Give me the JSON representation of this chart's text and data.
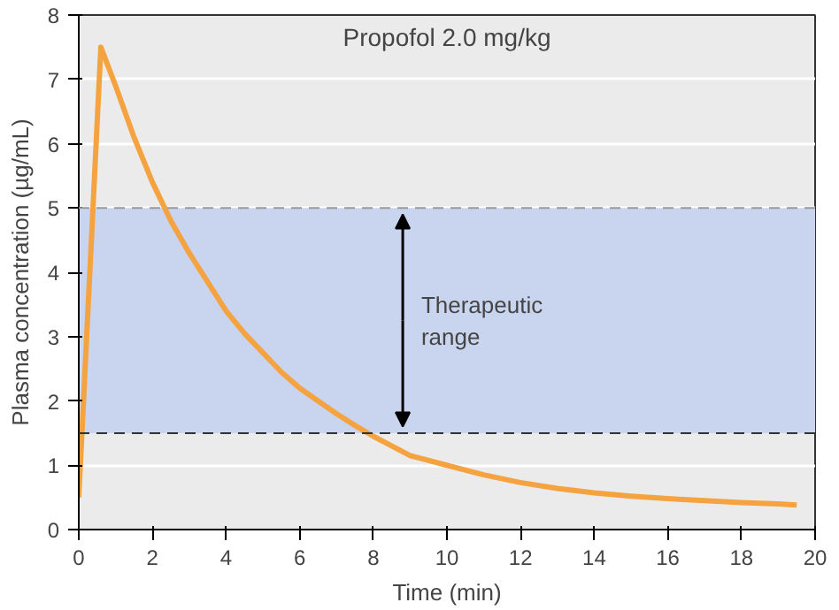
{
  "chart_data": {
    "type": "line",
    "title": "Propofol 2.0 mg/kg",
    "xlabel": "Time (min)",
    "ylabel": "Plasma concentration (µg/mL)",
    "xlim": [
      0,
      20
    ],
    "ylim": [
      0,
      8
    ],
    "xticks": [
      0,
      2,
      4,
      6,
      8,
      10,
      12,
      14,
      16,
      18,
      20
    ],
    "yticks": [
      0,
      1,
      2,
      3,
      4,
      5,
      6,
      7,
      8
    ],
    "grid": "y",
    "series": [
      {
        "color": "#f5a340",
        "x": [
          0,
          0.3,
          0.6,
          1,
          1.5,
          2,
          2.5,
          3,
          3.5,
          4,
          4.5,
          5,
          5.5,
          6,
          6.5,
          7,
          7.5,
          8,
          8.5,
          9,
          10,
          11,
          12,
          13,
          14,
          15,
          16,
          17,
          18,
          19,
          19.5
        ],
        "values": [
          0.5,
          4,
          7.5,
          6.9,
          6.1,
          5.4,
          4.8,
          4.3,
          3.85,
          3.4,
          3.05,
          2.75,
          2.45,
          2.2,
          2.0,
          1.8,
          1.62,
          1.45,
          1.3,
          1.15,
          1.0,
          0.85,
          0.73,
          0.64,
          0.57,
          0.52,
          0.48,
          0.45,
          0.42,
          0.4,
          0.38
        ]
      }
    ],
    "bands": [
      {
        "axis": "y",
        "from": 1.5,
        "to": 5,
        "label": "Therapeutic\nrange",
        "color": "#c9d5ef"
      }
    ],
    "ref_lines": [
      {
        "axis": "y",
        "value": 5,
        "color": "#999999",
        "line_style": "dashed"
      },
      {
        "axis": "y",
        "value": 1.5,
        "color": "#333333",
        "line_style": "dashed"
      }
    ]
  }
}
